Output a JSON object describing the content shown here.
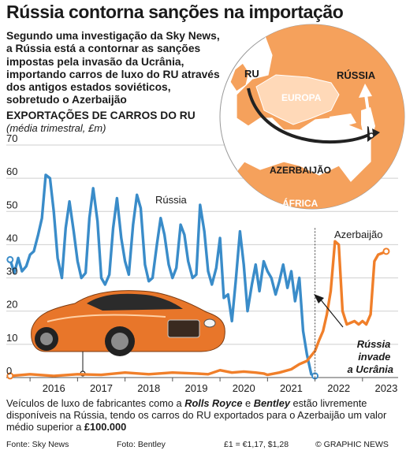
{
  "title": "Rússia contorna sanções na importação",
  "intro": "Segundo uma investigação da Sky News, a Rússia está a contornar as sanções impostas pela invasão da Ucrânia, importando carros de luxo do RU através dos antigos estados soviéticos, sobretudo o Azerbaijão",
  "map": {
    "labels": {
      "uk": "RU",
      "russia": "RÚSSIA",
      "europe": "EUROPA",
      "azerbaijan": "AZERBAIJÃO",
      "africa": "ÁFRICA"
    },
    "colors": {
      "sea": "#ffffff",
      "land": "#f5a15c",
      "inner": "#ffd9b8",
      "arrow": "#222222"
    }
  },
  "chart_data": {
    "type": "line",
    "title": "EXPORTAÇÕES DE CARROS DO RU",
    "subtitle": "(média trimestral, £m)",
    "ylim": [
      0,
      70
    ],
    "yticks": [
      0,
      10,
      20,
      30,
      40,
      50,
      60,
      70
    ],
    "xlim": [
      2015.5,
      2023.75
    ],
    "xticks": [
      "2016",
      "2017",
      "2018",
      "2019",
      "2020",
      "2021",
      "2022",
      "2023"
    ],
    "grid": true,
    "series": [
      {
        "name": "Rússia",
        "color": "#3a8cc9",
        "x": [
          2015.58,
          2015.67,
          2015.75,
          2015.83,
          2015.92,
          2016.0,
          2016.08,
          2016.17,
          2016.25,
          2016.33,
          2016.42,
          2016.5,
          2016.58,
          2016.67,
          2016.75,
          2016.83,
          2016.92,
          2017.0,
          2017.08,
          2017.17,
          2017.25,
          2017.33,
          2017.42,
          2017.5,
          2017.58,
          2017.67,
          2017.75,
          2017.83,
          2017.92,
          2018.0,
          2018.08,
          2018.17,
          2018.25,
          2018.33,
          2018.42,
          2018.5,
          2018.58,
          2018.67,
          2018.75,
          2018.83,
          2018.92,
          2019.0,
          2019.08,
          2019.17,
          2019.25,
          2019.33,
          2019.42,
          2019.5,
          2019.58,
          2019.67,
          2019.75,
          2019.83,
          2019.92,
          2020.0,
          2020.08,
          2020.17,
          2020.25,
          2020.33,
          2020.42,
          2020.5,
          2020.58,
          2020.67,
          2020.75,
          2020.83,
          2020.92,
          2021.0,
          2021.08,
          2021.17,
          2021.25,
          2021.33,
          2021.42,
          2021.5,
          2021.58,
          2021.67,
          2021.75,
          2021.83,
          2021.92,
          2022.0
        ],
        "values": [
          35.5,
          31.5,
          36,
          32,
          33.5,
          37,
          38,
          43,
          48,
          61,
          60,
          50,
          36,
          30,
          45,
          53,
          44,
          35,
          30,
          31.5,
          48,
          57,
          47,
          30,
          28,
          31,
          45,
          54,
          42,
          35,
          31,
          46,
          55,
          51,
          34,
          29,
          30,
          40,
          48,
          43,
          34,
          30,
          33,
          46,
          43,
          35,
          30,
          31,
          52,
          44,
          32,
          28,
          33,
          42,
          24,
          25,
          17,
          29,
          44,
          34,
          20,
          28,
          34,
          26,
          35,
          32,
          30,
          25,
          29,
          34,
          27,
          32,
          23,
          30,
          14,
          7,
          1,
          0.5
        ]
      },
      {
        "name": "Azerbaijão",
        "color": "#f07f2a",
        "x": [
          2015.58,
          2016.0,
          2016.5,
          2017.0,
          2017.5,
          2018.0,
          2018.5,
          2019.0,
          2019.5,
          2019.75,
          2020.0,
          2020.25,
          2020.5,
          2020.75,
          2020.92,
          2021.0,
          2021.25,
          2021.5,
          2021.67,
          2021.83,
          2022.0,
          2022.08,
          2022.17,
          2022.25,
          2022.33,
          2022.42,
          2022.5,
          2022.58,
          2022.67,
          2022.75,
          2022.83,
          2022.92,
          2023.0,
          2023.08,
          2023.17,
          2023.25,
          2023.33,
          2023.42,
          2023.5
        ],
        "values": [
          0.5,
          1,
          0.5,
          1,
          0.8,
          1.5,
          1,
          1.5,
          1.2,
          1,
          2.2,
          1.5,
          1.8,
          1.5,
          1.2,
          0.8,
          1.5,
          2.5,
          4,
          5,
          8,
          11,
          14,
          19,
          26,
          41,
          40,
          20,
          16,
          16.5,
          17,
          16,
          17,
          16,
          19,
          35,
          37,
          37.5,
          38
        ]
      }
    ],
    "annotations": {
      "invasion": "Rússia invade a Ucrânia",
      "invasion_x": 2022.0
    }
  },
  "footer": {
    "part1": "Veículos de luxo de fabricantes como a ",
    "brand1": "Rolls Royce",
    "part2": " e ",
    "brand2": "Bentley",
    "part3": " estão livremente disponíveis na Rússia, tendo os carros do RU exportados para o Azerbaijão um valor médio superior a ",
    "amount": "£100.000"
  },
  "credits": {
    "source": "Fonte: Sky News",
    "photo": "Foto: Bentley",
    "fx": "£1 = €1,17, $1,28",
    "brand": "© GRAPHIC NEWS"
  }
}
